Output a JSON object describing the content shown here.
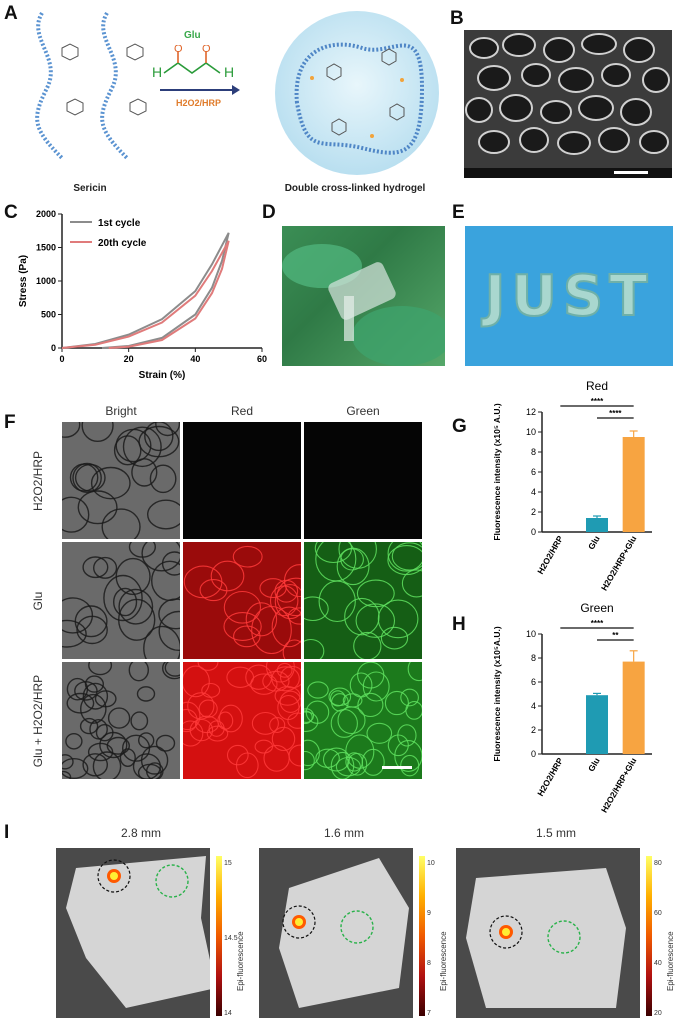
{
  "panels": {
    "A": {
      "label": "A",
      "reagent_top": "Glu",
      "reagent_bottom": "H2O2/HRP",
      "caption_left": "Sericin",
      "caption_right": "Double cross-linked hydrogel"
    },
    "B": {
      "label": "B"
    },
    "C": {
      "label": "C"
    },
    "D": {
      "label": "D"
    },
    "E": {
      "label": "E",
      "photo_text": "JUST"
    },
    "F": {
      "label": "F",
      "columns": [
        "Bright",
        "Red",
        "Green"
      ],
      "rows": [
        "H2O2/HRP",
        "Glu",
        "Glu + H2O2/HRP"
      ]
    },
    "G": {
      "label": "G"
    },
    "H": {
      "label": "H"
    },
    "I": {
      "label": "I",
      "depths": [
        "2.8 mm",
        "1.6 mm",
        "1.5 mm"
      ],
      "colorbar_label": "Epi-fluorescence",
      "colorbar_ticks": [
        [
          "15",
          "14.5",
          "14"
        ],
        [
          "10",
          "9",
          "8",
          "7"
        ],
        [
          "80",
          "60",
          "40",
          "20"
        ]
      ]
    }
  },
  "chart_data": [
    {
      "id": "C",
      "type": "line",
      "xlabel": "Strain (%)",
      "ylabel": "Stress (Pa)",
      "xlim": [
        0,
        60
      ],
      "ylim": [
        0,
        2000
      ],
      "xticks": [
        0,
        20,
        40,
        60
      ],
      "yticks": [
        0,
        500,
        1000,
        1500,
        2000
      ],
      "legend_position": "top-left",
      "series": [
        {
          "name": "1st cycle",
          "color": "#8c8c8c",
          "loading": [
            [
              0,
              0
            ],
            [
              10,
              60
            ],
            [
              20,
              200
            ],
            [
              30,
              430
            ],
            [
              40,
              850
            ],
            [
              45,
              1250
            ],
            [
              50,
              1720
            ]
          ],
          "unloading": [
            [
              50,
              1720
            ],
            [
              48,
              1300
            ],
            [
              45,
              900
            ],
            [
              40,
              500
            ],
            [
              30,
              150
            ],
            [
              20,
              30
            ],
            [
              12,
              0
            ]
          ]
        },
        {
          "name": "20th cycle",
          "color": "#e07b7b",
          "loading": [
            [
              0,
              0
            ],
            [
              10,
              50
            ],
            [
              20,
              170
            ],
            [
              30,
              380
            ],
            [
              40,
              780
            ],
            [
              45,
              1150
            ],
            [
              50,
              1600
            ]
          ],
          "unloading": [
            [
              50,
              1600
            ],
            [
              48,
              1180
            ],
            [
              45,
              820
            ],
            [
              40,
              440
            ],
            [
              30,
              120
            ],
            [
              20,
              20
            ],
            [
              14,
              0
            ]
          ]
        }
      ]
    },
    {
      "id": "G",
      "type": "bar",
      "title": "Red",
      "ylabel": "Fluorescence intensity (x10⁵ A.U.)",
      "categories": [
        "H2O2/HRP",
        "Glu",
        "H2O2/HRP+Glu"
      ],
      "values": [
        0,
        1.4,
        9.5
      ],
      "errors": [
        0,
        0.2,
        0.6
      ],
      "colors": [
        "#1f9bb3",
        "#1f9bb3",
        "#f7a441"
      ],
      "ylim": [
        0,
        12
      ],
      "yticks": [
        0,
        2,
        4,
        6,
        8,
        10,
        12
      ],
      "significance": [
        {
          "from": 0,
          "to": 2,
          "label": "****"
        },
        {
          "from": 1,
          "to": 2,
          "label": "****"
        }
      ]
    },
    {
      "id": "H",
      "type": "bar",
      "title": "Green",
      "ylabel": "Fluorescence intensity (x10⁵A.U.)",
      "categories": [
        "H2O2/HRP",
        "Glu",
        "H2O2/HRP+Glu"
      ],
      "values": [
        0,
        4.9,
        7.7
      ],
      "errors": [
        0,
        0.15,
        0.9
      ],
      "colors": [
        "#1f9bb3",
        "#1f9bb3",
        "#f7a441"
      ],
      "ylim": [
        0,
        10
      ],
      "yticks": [
        0,
        2,
        4,
        6,
        8,
        10
      ],
      "significance": [
        {
          "from": 0,
          "to": 2,
          "label": "****"
        },
        {
          "from": 1,
          "to": 2,
          "label": "**"
        }
      ]
    }
  ]
}
